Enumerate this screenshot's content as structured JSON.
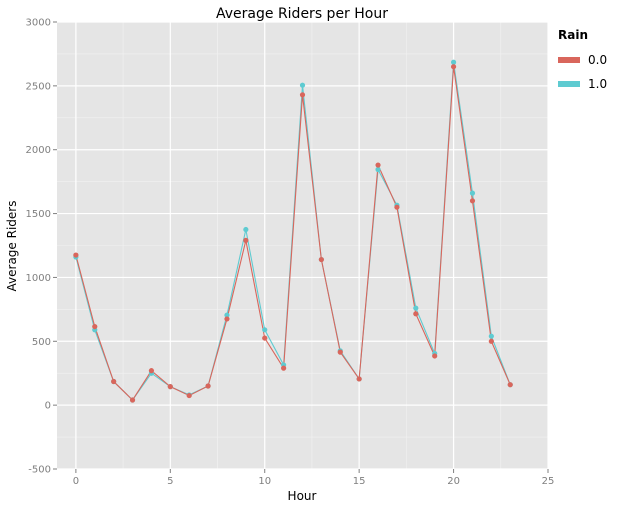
{
  "chart_data": {
    "type": "line",
    "title": "Average Riders per Hour",
    "xlabel": "Hour",
    "ylabel": "Average Riders",
    "xlim": [
      -1,
      25
    ],
    "ylim": [
      -500,
      3000
    ],
    "xticks": [
      0,
      5,
      10,
      15,
      20,
      25
    ],
    "yticks": [
      -500,
      0,
      500,
      1000,
      1500,
      2000,
      2500,
      3000
    ],
    "grid": true,
    "legend": {
      "title": "Rain",
      "position": "right"
    },
    "series": [
      {
        "name": "0.0",
        "color": "#d9665c",
        "x": [
          0,
          1,
          2,
          3,
          4,
          5,
          6,
          7,
          8,
          9,
          10,
          11,
          12,
          13,
          14,
          15,
          16,
          17,
          18,
          19,
          20,
          21,
          22,
          23
        ],
        "y": [
          1175,
          615,
          185,
          40,
          270,
          145,
          75,
          150,
          675,
          1290,
          525,
          290,
          2430,
          1140,
          415,
          205,
          1880,
          1550,
          715,
          385,
          2650,
          1600,
          500,
          160
        ]
      },
      {
        "name": "1.0",
        "color": "#5ecbd1",
        "x": [
          0,
          1,
          2,
          3,
          4,
          5,
          6,
          7,
          8,
          9,
          10,
          11,
          12,
          13,
          14,
          15,
          16,
          17,
          18,
          19,
          20,
          21,
          22,
          23
        ],
        "y": [
          1160,
          590,
          185,
          40,
          250,
          145,
          80,
          150,
          705,
          1375,
          590,
          315,
          2505,
          1140,
          425,
          205,
          1845,
          1565,
          760,
          405,
          2685,
          1660,
          540,
          160
        ]
      }
    ]
  }
}
